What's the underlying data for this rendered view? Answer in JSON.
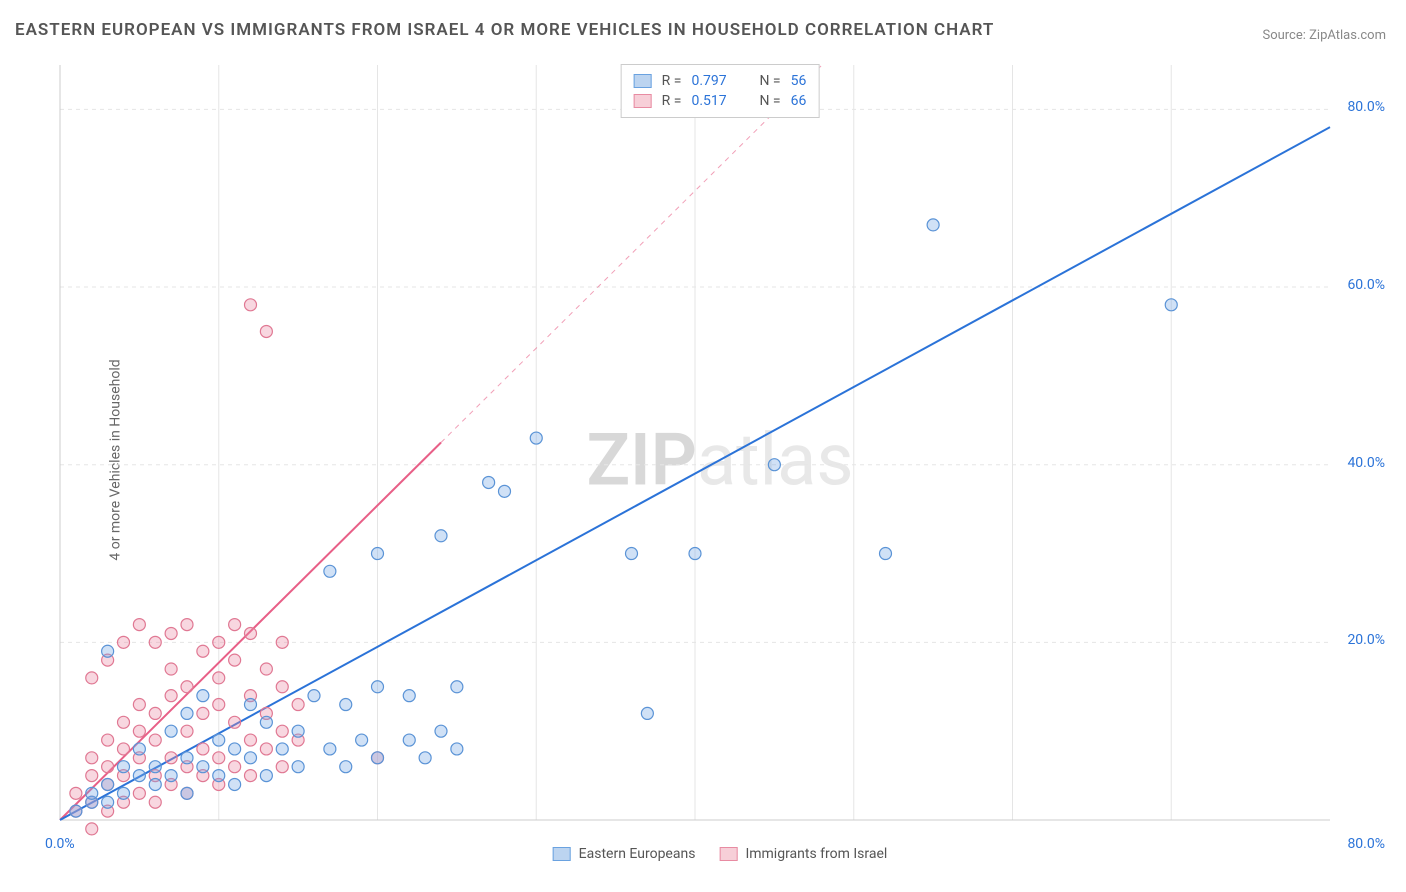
{
  "title": "EASTERN EUROPEAN VS IMMIGRANTS FROM ISRAEL 4 OR MORE VEHICLES IN HOUSEHOLD CORRELATION CHART",
  "source": "Source: ZipAtlas.com",
  "y_axis_label": "4 or more Vehicles in Household",
  "watermark": {
    "bold": "ZIP",
    "rest": "atlas"
  },
  "chart": {
    "type": "scatter",
    "xlim": [
      0,
      80
    ],
    "ylim": [
      0,
      85
    ],
    "x_ticks": [
      0,
      80
    ],
    "y_ticks": [
      20,
      40,
      60,
      80
    ],
    "x_tick_format": "%",
    "y_tick_format": "%",
    "background_color": "#ffffff",
    "grid_color": "#e5e5e5",
    "axis_color": "#cccccc",
    "tick_text_color": "#2b73d8",
    "marker_radius": 6,
    "marker_stroke_width": 1.2,
    "trend_line_width": 2
  },
  "series_a": {
    "name": "Eastern Europeans",
    "swatch_fill": "#bcd4f0",
    "swatch_stroke": "#6aa2e0",
    "marker_fill": "rgba(120,170,230,0.35)",
    "marker_stroke": "#5a93d6",
    "trend_color": "#2b73d8",
    "trend_dash": "none",
    "trend_from": [
      0,
      0
    ],
    "trend_to": [
      80,
      78
    ],
    "R": "0.797",
    "N": "56",
    "points": [
      [
        1,
        1
      ],
      [
        2,
        2
      ],
      [
        2,
        3
      ],
      [
        3,
        4
      ],
      [
        3,
        2
      ],
      [
        4,
        6
      ],
      [
        4,
        3
      ],
      [
        5,
        5
      ],
      [
        5,
        8
      ],
      [
        6,
        4
      ],
      [
        6,
        6
      ],
      [
        7,
        10
      ],
      [
        7,
        5
      ],
      [
        8,
        7
      ],
      [
        8,
        12
      ],
      [
        8,
        3
      ],
      [
        9,
        6
      ],
      [
        9,
        14
      ],
      [
        10,
        5
      ],
      [
        10,
        9
      ],
      [
        11,
        8
      ],
      [
        11,
        4
      ],
      [
        12,
        13
      ],
      [
        12,
        7
      ],
      [
        13,
        11
      ],
      [
        13,
        5
      ],
      [
        14,
        8
      ],
      [
        15,
        6
      ],
      [
        15,
        10
      ],
      [
        16,
        14
      ],
      [
        17,
        8
      ],
      [
        18,
        13
      ],
      [
        18,
        6
      ],
      [
        19,
        9
      ],
      [
        20,
        15
      ],
      [
        20,
        7
      ],
      [
        22,
        9
      ],
      [
        22,
        14
      ],
      [
        23,
        7
      ],
      [
        24,
        10
      ],
      [
        25,
        8
      ],
      [
        25,
        15
      ],
      [
        17,
        28
      ],
      [
        20,
        30
      ],
      [
        24,
        32
      ],
      [
        27,
        38
      ],
      [
        28,
        37
      ],
      [
        30,
        43
      ],
      [
        36,
        30
      ],
      [
        40,
        30
      ],
      [
        45,
        40
      ],
      [
        52,
        30
      ],
      [
        37,
        12
      ],
      [
        55,
        67
      ],
      [
        70,
        58
      ],
      [
        3,
        19
      ]
    ]
  },
  "series_b": {
    "name": "Immigrants from Israel",
    "swatch_fill": "#f7cfd8",
    "swatch_stroke": "#e88ba2",
    "marker_fill": "rgba(235,140,165,0.35)",
    "marker_stroke": "#e07893",
    "trend_color": "#e85f87",
    "trend_dash_solid_to_x": 24,
    "trend_from": [
      0,
      0
    ],
    "trend_to": [
      48,
      85
    ],
    "R": "0.517",
    "N": "66",
    "points": [
      [
        1,
        1
      ],
      [
        1,
        3
      ],
      [
        2,
        2
      ],
      [
        2,
        5
      ],
      [
        2,
        7
      ],
      [
        3,
        1
      ],
      [
        3,
        4
      ],
      [
        3,
        6
      ],
      [
        3,
        9
      ],
      [
        4,
        2
      ],
      [
        4,
        5
      ],
      [
        4,
        8
      ],
      [
        4,
        11
      ],
      [
        5,
        3
      ],
      [
        5,
        7
      ],
      [
        5,
        10
      ],
      [
        5,
        13
      ],
      [
        6,
        2
      ],
      [
        6,
        5
      ],
      [
        6,
        9
      ],
      [
        6,
        12
      ],
      [
        7,
        4
      ],
      [
        7,
        7
      ],
      [
        7,
        14
      ],
      [
        7,
        17
      ],
      [
        8,
        3
      ],
      [
        8,
        6
      ],
      [
        8,
        10
      ],
      [
        8,
        15
      ],
      [
        9,
        5
      ],
      [
        9,
        8
      ],
      [
        9,
        12
      ],
      [
        9,
        19
      ],
      [
        10,
        4
      ],
      [
        10,
        7
      ],
      [
        10,
        13
      ],
      [
        10,
        16
      ],
      [
        11,
        6
      ],
      [
        11,
        11
      ],
      [
        11,
        18
      ],
      [
        12,
        5
      ],
      [
        12,
        9
      ],
      [
        12,
        14
      ],
      [
        12,
        21
      ],
      [
        13,
        8
      ],
      [
        13,
        12
      ],
      [
        13,
        17
      ],
      [
        14,
        6
      ],
      [
        14,
        10
      ],
      [
        14,
        15
      ],
      [
        14,
        20
      ],
      [
        15,
        9
      ],
      [
        15,
        13
      ],
      [
        2,
        16
      ],
      [
        3,
        18
      ],
      [
        4,
        20
      ],
      [
        5,
        22
      ],
      [
        6,
        20
      ],
      [
        7,
        21
      ],
      [
        8,
        22
      ],
      [
        10,
        20
      ],
      [
        11,
        22
      ],
      [
        12,
        58
      ],
      [
        13,
        55
      ],
      [
        20,
        7
      ],
      [
        2,
        -1
      ]
    ]
  },
  "legend_top_labels": {
    "R": "R =",
    "N": "N ="
  },
  "x_ticks_labels": {
    "0": "0.0%",
    "80": "80.0%"
  },
  "y_ticks_labels": {
    "20": "20.0%",
    "40": "40.0%",
    "60": "60.0%",
    "80": "80.0%"
  }
}
